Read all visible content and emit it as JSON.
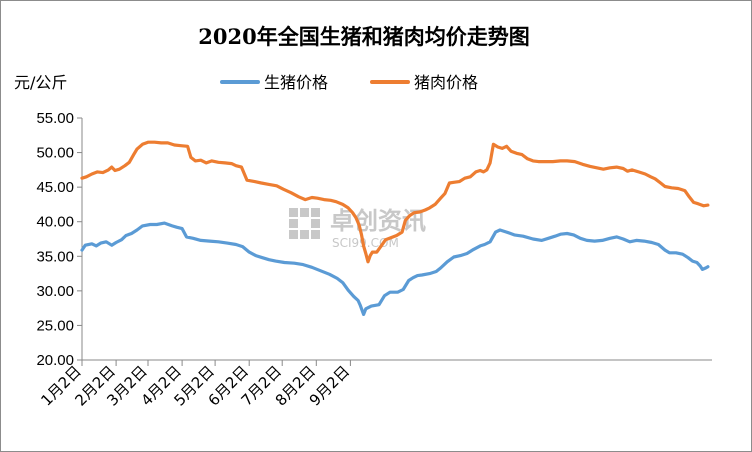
{
  "chart_data": {
    "type": "line",
    "title": "2020年全国生猪和猪肉均价走势图",
    "ylabel": "元/公斤",
    "xlabel": "",
    "ylim": [
      20,
      55
    ],
    "yticks": [
      "20.00",
      "25.00",
      "30.00",
      "35.00",
      "40.00",
      "45.00",
      "50.00",
      "55.00"
    ],
    "categories": [
      "1月2日",
      "2月2日",
      "3月2日",
      "4月2日",
      "5月2日",
      "6月2日",
      "7月2日",
      "8月2日",
      "9月2日"
    ],
    "legend_position": "top",
    "grid": false,
    "watermark": {
      "main": "卓创资讯",
      "sub": "SCI99.COM"
    },
    "series": [
      {
        "name": "生猪价格",
        "color": "#5b9bd5",
        "points": [
          [
            0,
            35.9
          ],
          [
            3,
            36.6
          ],
          [
            9,
            36.8
          ],
          [
            13,
            36.5
          ],
          [
            17,
            36.9
          ],
          [
            22,
            37.1
          ],
          [
            27,
            36.6
          ],
          [
            31,
            37.0
          ],
          [
            36,
            37.4
          ],
          [
            40,
            38.0
          ],
          [
            45,
            38.3
          ],
          [
            50,
            38.8
          ],
          [
            55,
            39.4
          ],
          [
            62,
            39.6
          ],
          [
            68,
            39.6
          ],
          [
            75,
            39.8
          ],
          [
            82,
            39.4
          ],
          [
            86,
            39.2
          ],
          [
            91,
            39.0
          ],
          [
            95,
            37.8
          ],
          [
            101,
            37.6
          ],
          [
            108,
            37.3
          ],
          [
            116,
            37.2
          ],
          [
            124,
            37.1
          ],
          [
            132,
            36.9
          ],
          [
            140,
            36.7
          ],
          [
            146,
            36.4
          ],
          [
            152,
            35.6
          ],
          [
            158,
            35.1
          ],
          [
            164,
            34.8
          ],
          [
            170,
            34.5
          ],
          [
            176,
            34.3
          ],
          [
            184,
            34.1
          ],
          [
            193,
            34.0
          ],
          [
            201,
            33.8
          ],
          [
            209,
            33.4
          ],
          [
            217,
            32.9
          ],
          [
            225,
            32.4
          ],
          [
            232,
            31.8
          ],
          [
            237,
            31.2
          ],
          [
            242,
            30.1
          ],
          [
            247,
            29.2
          ],
          [
            251,
            28.6
          ],
          [
            253,
            27.9
          ],
          [
            256,
            26.6
          ],
          [
            258,
            27.4
          ],
          [
            263,
            27.8
          ],
          [
            270,
            28.0
          ],
          [
            275,
            29.3
          ],
          [
            280,
            29.8
          ],
          [
            287,
            29.8
          ],
          [
            292,
            30.2
          ],
          [
            297,
            31.5
          ],
          [
            301,
            31.9
          ],
          [
            305,
            32.2
          ],
          [
            309,
            32.3
          ],
          [
            316,
            32.5
          ],
          [
            322,
            32.8
          ],
          [
            326,
            33.3
          ],
          [
            332,
            34.2
          ],
          [
            338,
            34.9
          ],
          [
            344,
            35.1
          ],
          [
            350,
            35.4
          ],
          [
            356,
            36.0
          ],
          [
            362,
            36.5
          ],
          [
            366,
            36.7
          ],
          [
            371,
            37.1
          ],
          [
            376,
            38.5
          ],
          [
            380,
            38.8
          ],
          [
            386,
            38.5
          ],
          [
            393,
            38.1
          ],
          [
            401,
            37.9
          ],
          [
            410,
            37.5
          ],
          [
            418,
            37.3
          ],
          [
            424,
            37.6
          ],
          [
            430,
            37.9
          ],
          [
            435,
            38.2
          ],
          [
            441,
            38.3
          ],
          [
            447,
            38.1
          ],
          [
            453,
            37.6
          ],
          [
            459,
            37.3
          ],
          [
            466,
            37.2
          ],
          [
            473,
            37.3
          ],
          [
            480,
            37.6
          ],
          [
            486,
            37.8
          ],
          [
            492,
            37.5
          ],
          [
            498,
            37.1
          ],
          [
            504,
            37.3
          ],
          [
            511,
            37.2
          ],
          [
            518,
            37.0
          ],
          [
            524,
            36.7
          ],
          [
            530,
            35.9
          ],
          [
            534,
            35.5
          ],
          [
            540,
            35.5
          ],
          [
            546,
            35.3
          ],
          [
            551,
            34.8
          ],
          [
            555,
            34.3
          ],
          [
            559,
            34.1
          ],
          [
            562,
            33.6
          ],
          [
            564,
            33.1
          ],
          [
            567,
            33.3
          ],
          [
            569,
            33.5
          ]
        ]
      },
      {
        "name": "猪肉价格",
        "color": "#ed7d31",
        "points": [
          [
            0,
            46.3
          ],
          [
            4,
            46.5
          ],
          [
            9,
            46.9
          ],
          [
            14,
            47.2
          ],
          [
            19,
            47.1
          ],
          [
            24,
            47.5
          ],
          [
            27,
            47.9
          ],
          [
            30,
            47.4
          ],
          [
            34,
            47.6
          ],
          [
            39,
            48.1
          ],
          [
            43,
            48.6
          ],
          [
            47,
            49.7
          ],
          [
            50,
            50.5
          ],
          [
            55,
            51.2
          ],
          [
            60,
            51.5
          ],
          [
            66,
            51.5
          ],
          [
            72,
            51.4
          ],
          [
            78,
            51.4
          ],
          [
            84,
            51.1
          ],
          [
            90,
            51.0
          ],
          [
            96,
            50.9
          ],
          [
            99,
            49.3
          ],
          [
            103,
            48.8
          ],
          [
            108,
            48.9
          ],
          [
            113,
            48.5
          ],
          [
            118,
            48.8
          ],
          [
            124,
            48.6
          ],
          [
            130,
            48.5
          ],
          [
            136,
            48.4
          ],
          [
            140,
            48.1
          ],
          [
            145,
            47.9
          ],
          [
            150,
            46.0
          ],
          [
            157,
            45.8
          ],
          [
            163,
            45.6
          ],
          [
            170,
            45.4
          ],
          [
            177,
            45.2
          ],
          [
            183,
            44.7
          ],
          [
            190,
            44.2
          ],
          [
            197,
            43.6
          ],
          [
            203,
            43.2
          ],
          [
            209,
            43.5
          ],
          [
            214,
            43.4
          ],
          [
            220,
            43.2
          ],
          [
            226,
            43.1
          ],
          [
            231,
            42.9
          ],
          [
            237,
            42.5
          ],
          [
            242,
            42.0
          ],
          [
            246,
            41.3
          ],
          [
            249,
            40.6
          ],
          [
            252,
            39.5
          ],
          [
            254,
            38.2
          ],
          [
            256,
            36.5
          ],
          [
            258,
            35.4
          ],
          [
            260,
            34.2
          ],
          [
            262,
            35.1
          ],
          [
            264,
            35.6
          ],
          [
            268,
            35.6
          ],
          [
            272,
            36.5
          ],
          [
            276,
            37.4
          ],
          [
            281,
            37.7
          ],
          [
            286,
            38.0
          ],
          [
            291,
            38.5
          ],
          [
            294,
            40.2
          ],
          [
            298,
            40.9
          ],
          [
            302,
            41.3
          ],
          [
            307,
            41.4
          ],
          [
            312,
            41.7
          ],
          [
            316,
            42.0
          ],
          [
            321,
            42.5
          ],
          [
            326,
            43.4
          ],
          [
            330,
            44.1
          ],
          [
            334,
            45.6
          ],
          [
            338,
            45.7
          ],
          [
            343,
            45.8
          ],
          [
            348,
            46.3
          ],
          [
            353,
            46.5
          ],
          [
            358,
            47.2
          ],
          [
            362,
            47.4
          ],
          [
            365,
            47.2
          ],
          [
            368,
            47.5
          ],
          [
            371,
            48.5
          ],
          [
            374,
            51.2
          ],
          [
            378,
            50.8
          ],
          [
            382,
            50.6
          ],
          [
            386,
            50.9
          ],
          [
            390,
            50.2
          ],
          [
            395,
            49.9
          ],
          [
            400,
            49.7
          ],
          [
            405,
            49.1
          ],
          [
            410,
            48.8
          ],
          [
            415,
            48.7
          ],
          [
            421,
            48.7
          ],
          [
            428,
            48.7
          ],
          [
            435,
            48.8
          ],
          [
            441,
            48.8
          ],
          [
            448,
            48.7
          ],
          [
            455,
            48.3
          ],
          [
            462,
            48.0
          ],
          [
            468,
            47.8
          ],
          [
            474,
            47.6
          ],
          [
            480,
            47.8
          ],
          [
            486,
            47.9
          ],
          [
            492,
            47.7
          ],
          [
            496,
            47.3
          ],
          [
            500,
            47.5
          ],
          [
            506,
            47.2
          ],
          [
            512,
            46.9
          ],
          [
            517,
            46.5
          ],
          [
            521,
            46.2
          ],
          [
            526,
            45.6
          ],
          [
            530,
            45.1
          ],
          [
            536,
            44.9
          ],
          [
            542,
            44.8
          ],
          [
            548,
            44.5
          ],
          [
            552,
            43.6
          ],
          [
            556,
            42.8
          ],
          [
            560,
            42.6
          ],
          [
            565,
            42.3
          ],
          [
            569,
            42.4
          ]
        ]
      }
    ]
  }
}
